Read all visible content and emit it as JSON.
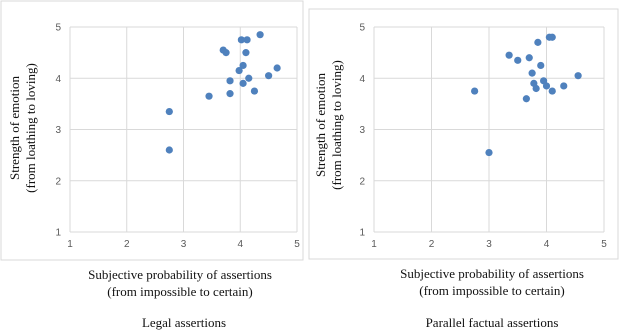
{
  "chart_data": [
    {
      "type": "scatter",
      "title": "",
      "caption": "Legal assertions",
      "xlabel": [
        "Subjective probability of assertions",
        "(from impossible to certain)"
      ],
      "ylabel": [
        "Strength of emotion",
        "(from loathing to loving)"
      ],
      "xlim": [
        1,
        5
      ],
      "ylim": [
        1,
        5
      ],
      "xticks": [
        "1",
        "2",
        "3",
        "4",
        "5"
      ],
      "yticks": [
        "1",
        "2",
        "3",
        "4",
        "5"
      ],
      "grid": true,
      "marker_color": "#4F81BD",
      "points": [
        {
          "x": 2.75,
          "y": 3.35
        },
        {
          "x": 2.75,
          "y": 2.6
        },
        {
          "x": 3.45,
          "y": 3.65
        },
        {
          "x": 3.7,
          "y": 4.55
        },
        {
          "x": 3.75,
          "y": 4.5
        },
        {
          "x": 3.82,
          "y": 3.95
        },
        {
          "x": 3.82,
          "y": 3.7
        },
        {
          "x": 3.98,
          "y": 4.15
        },
        {
          "x": 4.02,
          "y": 4.75
        },
        {
          "x": 4.05,
          "y": 4.25
        },
        {
          "x": 4.05,
          "y": 3.9
        },
        {
          "x": 4.1,
          "y": 4.5
        },
        {
          "x": 4.12,
          "y": 4.75
        },
        {
          "x": 4.15,
          "y": 4.0
        },
        {
          "x": 4.25,
          "y": 3.75
        },
        {
          "x": 4.35,
          "y": 4.85
        },
        {
          "x": 4.5,
          "y": 4.05
        },
        {
          "x": 4.65,
          "y": 4.2
        }
      ]
    },
    {
      "type": "scatter",
      "title": "",
      "caption": "Parallel factual assertions",
      "xlabel": [
        "Subjective probability of assertions",
        "(from impossible to certain)"
      ],
      "ylabel": [
        "Strength of emotion",
        "(from loathing to loving)"
      ],
      "xlim": [
        1,
        5
      ],
      "ylim": [
        1,
        5
      ],
      "xticks": [
        "1",
        "2",
        "3",
        "4",
        "5"
      ],
      "yticks": [
        "1",
        "2",
        "3",
        "4",
        "5"
      ],
      "grid": true,
      "marker_color": "#4F81BD",
      "points": [
        {
          "x": 2.75,
          "y": 3.75
        },
        {
          "x": 3.0,
          "y": 2.55
        },
        {
          "x": 3.35,
          "y": 4.45
        },
        {
          "x": 3.5,
          "y": 4.35
        },
        {
          "x": 3.65,
          "y": 3.6
        },
        {
          "x": 3.7,
          "y": 4.4
        },
        {
          "x": 3.75,
          "y": 4.1
        },
        {
          "x": 3.78,
          "y": 3.9
        },
        {
          "x": 3.82,
          "y": 3.8
        },
        {
          "x": 3.85,
          "y": 4.7
        },
        {
          "x": 3.9,
          "y": 4.25
        },
        {
          "x": 3.95,
          "y": 3.95
        },
        {
          "x": 4.0,
          "y": 3.85
        },
        {
          "x": 4.05,
          "y": 4.8
        },
        {
          "x": 4.1,
          "y": 4.8
        },
        {
          "x": 4.1,
          "y": 3.75
        },
        {
          "x": 4.3,
          "y": 3.85
        },
        {
          "x": 4.55,
          "y": 4.05
        }
      ]
    }
  ]
}
